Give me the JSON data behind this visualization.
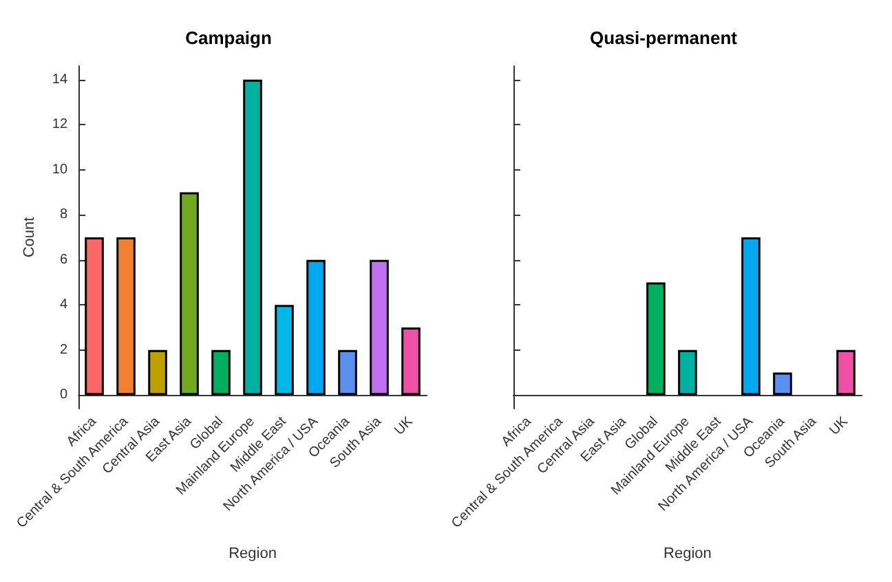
{
  "chart_data": [
    {
      "type": "bar",
      "title": "Campaign",
      "xlabel": "Region",
      "ylabel": "Count",
      "categories": [
        "Africa",
        "Central & South America",
        "Central Asia",
        "East Asia",
        "Global",
        "Mainland Europe",
        "Middle East",
        "North America / USA",
        "Oceania",
        "South Asia",
        "UK"
      ],
      "values": [
        7,
        7,
        2,
        9,
        2,
        14,
        4,
        6,
        2,
        6,
        3
      ],
      "colors": [
        "#ff6666",
        "#f28030",
        "#c0a000",
        "#70aa20",
        "#00b060",
        "#00b0a0",
        "#00b8e8",
        "#00a8f0",
        "#5c90f0",
        "#c070f0",
        "#f050a8"
      ],
      "ylim": [
        -0.6,
        14.6
      ],
      "yticks": [
        0,
        2,
        4,
        6,
        8,
        10,
        12,
        14
      ],
      "grid": false
    },
    {
      "type": "bar",
      "title": "Quasi-permanent",
      "xlabel": "Region",
      "categories": [
        "Africa",
        "Central & South America",
        "Central Asia",
        "East Asia",
        "Global",
        "Mainland Europe",
        "Middle East",
        "North America / USA",
        "Oceania",
        "South Asia",
        "UK"
      ],
      "values": [
        null,
        null,
        null,
        null,
        5,
        2,
        null,
        7,
        1,
        null,
        2
      ],
      "colors": [
        "#ff6666",
        "#f28030",
        "#c0a000",
        "#70aa20",
        "#00b060",
        "#00b0a0",
        "#00b8e8",
        "#00a8f0",
        "#5c90f0",
        "#c070f0",
        "#f050a8"
      ],
      "ylim": [
        -0.6,
        14.6
      ],
      "yticks": [
        0,
        2,
        4,
        6,
        8,
        10,
        12,
        14
      ],
      "grid": false,
      "tick_labels": "x"
    }
  ]
}
